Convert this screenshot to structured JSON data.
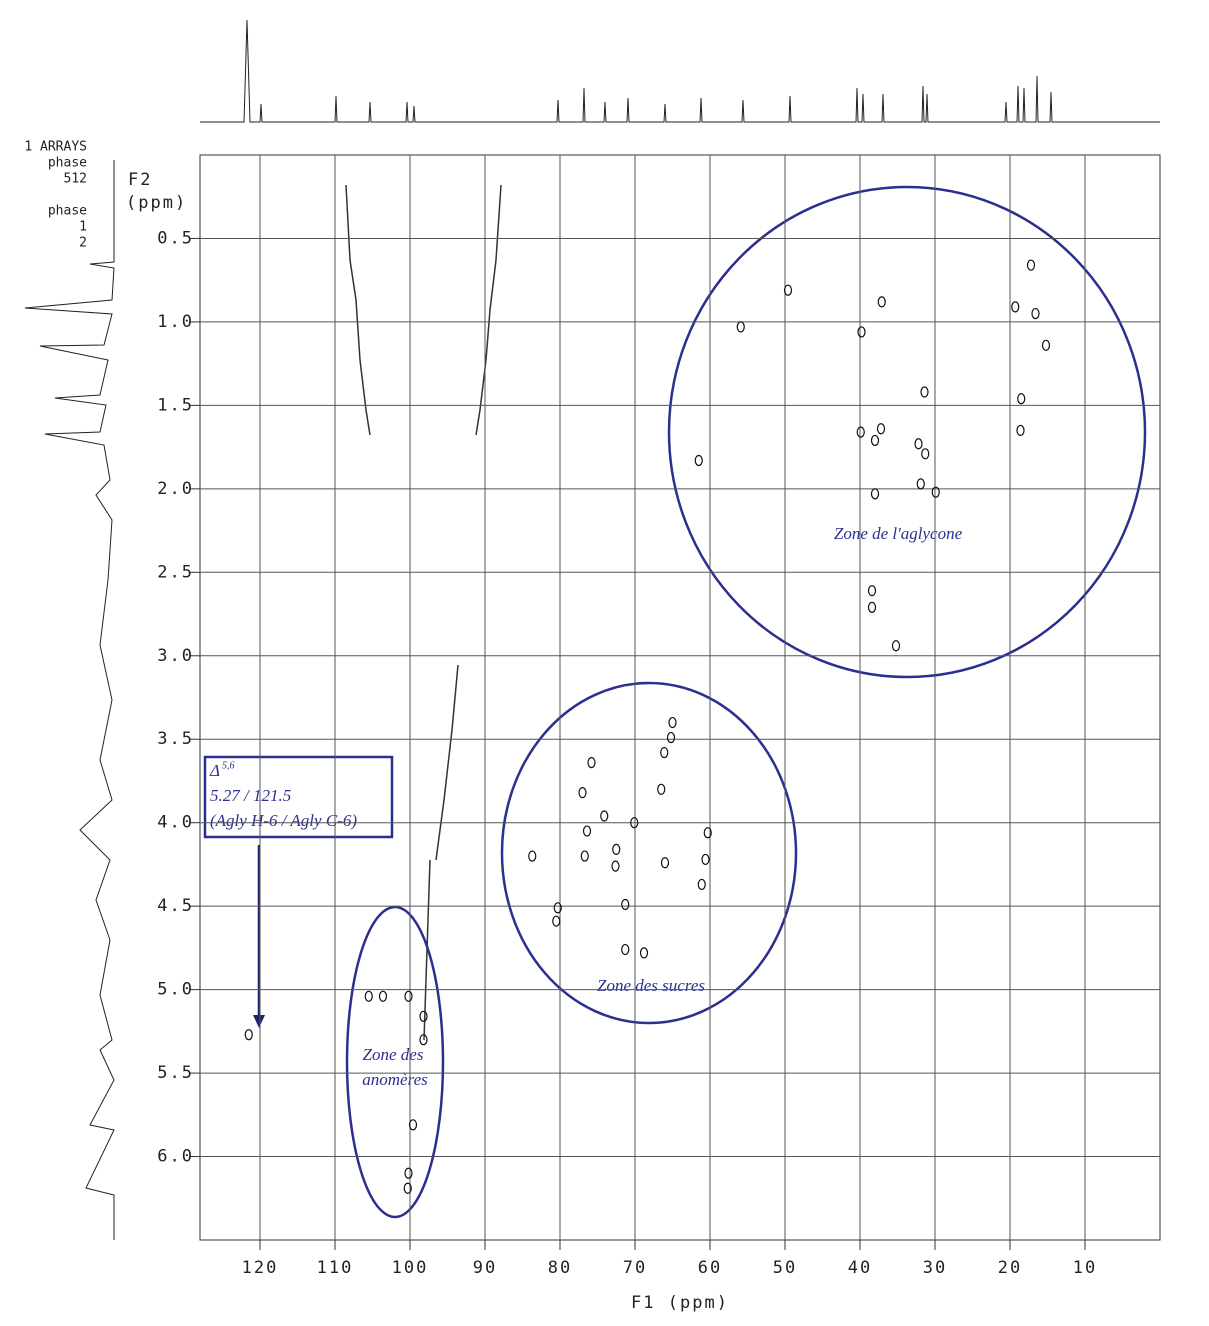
{
  "chart_data": {
    "type": "scatter",
    "x_label": "F1 (ppm)",
    "y_label_1": "F2",
    "y_label_2": "(ppm)",
    "side_labels": [
      "1 ARRAYS",
      "phase",
      "512",
      "phase",
      "1",
      "2"
    ],
    "xlim": [
      128,
      0
    ],
    "ylim": [
      6.5,
      0
    ],
    "xticks": [
      120,
      110,
      100,
      90,
      80,
      70,
      60,
      50,
      40,
      30,
      20,
      10
    ],
    "yticks": [
      0.5,
      {
        "value": 1,
        "label": "1.0"
      },
      1.5,
      {
        "value": 2,
        "label": "2.0"
      },
      2.5,
      {
        "value": 3,
        "label": "3.0"
      },
      3.5,
      {
        "value": 4,
        "label": "4.0"
      },
      4.5,
      {
        "value": 5,
        "label": "5.0"
      },
      5.5,
      {
        "value": 6,
        "label": "6.0"
      }
    ],
    "grid": true,
    "color": "#111111",
    "x": [
      17.2,
      49.6,
      37.1,
      55.9,
      19.3,
      16.6,
      39.8,
      15.2,
      31.4,
      18.5,
      37.2,
      39.9,
      18.6,
      32.2,
      38.0,
      61.5,
      31.3,
      38.0,
      31.9,
      29.9,
      38.4,
      38.4,
      35.2,
      65.0,
      65.2,
      66.1,
      75.8,
      66.5,
      77.0,
      74.1,
      70.1,
      76.4,
      60.3,
      72.5,
      60.6,
      76.7,
      66.0,
      72.6,
      83.7,
      71.3,
      80.3,
      80.5,
      71.3,
      68.8,
      61.1,
      105.5,
      103.6,
      100.2,
      121.5,
      98.2,
      99.6,
      100.2,
      100.3,
      98.2
    ],
    "values": [
      0.66,
      0.81,
      0.88,
      1.03,
      0.91,
      0.95,
      1.06,
      1.14,
      1.42,
      1.46,
      1.64,
      1.66,
      1.65,
      1.73,
      1.71,
      1.83,
      1.79,
      2.03,
      1.97,
      2.02,
      2.61,
      2.71,
      2.94,
      3.4,
      3.49,
      3.58,
      3.64,
      3.8,
      3.82,
      3.96,
      4.0,
      4.05,
      4.06,
      4.16,
      4.22,
      4.2,
      4.24,
      4.26,
      4.2,
      4.49,
      4.51,
      4.59,
      4.76,
      4.78,
      4.37,
      5.04,
      5.04,
      5.04,
      5.27,
      5.3,
      5.81,
      6.1,
      6.19,
      5.16
    ],
    "annotations": {
      "delta": "Δ",
      "delta_sup": "5,6",
      "shift": "5.27 / 121.5",
      "assignment": "(Agly H-6 / Agly C-6)",
      "zone_aglycone": "Zone de l'aglycone",
      "zone_sugars": "Zone des sucres",
      "zone_anomers_1": "Zone des",
      "zone_anomers_2": "anomères"
    }
  }
}
